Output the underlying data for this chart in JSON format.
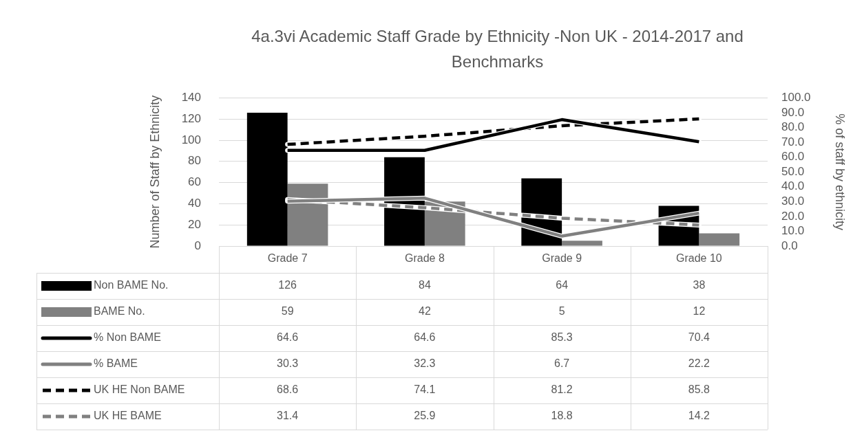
{
  "chart_data": {
    "type": "bar",
    "title": "4a.3vi Academic Staff Grade by Ethnicity -Non UK - 2014-2017 and Benchmarks",
    "ylabel": "Number of Staff by Ethnicity",
    "y2label": "% of staff by ethnicity",
    "categories": [
      "Grade 7",
      "Grade 8",
      "Grade 9",
      "Grade 10"
    ],
    "series": [
      {
        "name": "Non BAME No.",
        "color": "#000000",
        "values": [
          126,
          84,
          64,
          38
        ]
      },
      {
        "name": "BAME No.",
        "color": "#808080",
        "values": [
          59,
          42,
          5,
          12
        ]
      },
      {
        "name": "% Non BAME",
        "type": "line",
        "axis": "y2",
        "color": "#000000",
        "line_style": "solid",
        "values": [
          64.6,
          64.6,
          85.3,
          70.4
        ]
      },
      {
        "name": "% BAME",
        "type": "line",
        "axis": "y2",
        "color": "#808080",
        "line_style": "solid",
        "values": [
          30.3,
          32.3,
          6.7,
          22.2
        ]
      },
      {
        "name": "UK HE Non BAME",
        "type": "line",
        "axis": "y2",
        "color": "#000000",
        "line_style": "dashed",
        "values": [
          68.6,
          74.1,
          81.2,
          85.8
        ]
      },
      {
        "name": "UK HE BAME",
        "type": "line",
        "axis": "y2",
        "color": "#808080",
        "line_style": "dashed",
        "values": [
          31.4,
          25.9,
          18.8,
          14.2
        ]
      }
    ],
    "ylim": [
      0,
      140
    ],
    "yticks": [
      0,
      20,
      40,
      60,
      80,
      100,
      120,
      140
    ],
    "y2lim": [
      0,
      100
    ],
    "y2ticks": [
      {
        "value": 0,
        "label": "0.0"
      },
      {
        "value": 10,
        "label": "10.0"
      },
      {
        "value": 20,
        "label": "20.0"
      },
      {
        "value": 30,
        "label": "30.0"
      },
      {
        "value": 40,
        "label": "40.0"
      },
      {
        "value": 50,
        "label": "50.0"
      },
      {
        "value": 60,
        "label": "60.0"
      },
      {
        "value": 70,
        "label": "70.0"
      },
      {
        "value": 80,
        "label": "80.0"
      },
      {
        "value": 90,
        "label": "90.0"
      },
      {
        "value": 100,
        "label": "100.0"
      }
    ],
    "grid": "y",
    "legend": "bottom left",
    "marker": "none",
    "data_labels": true
  }
}
